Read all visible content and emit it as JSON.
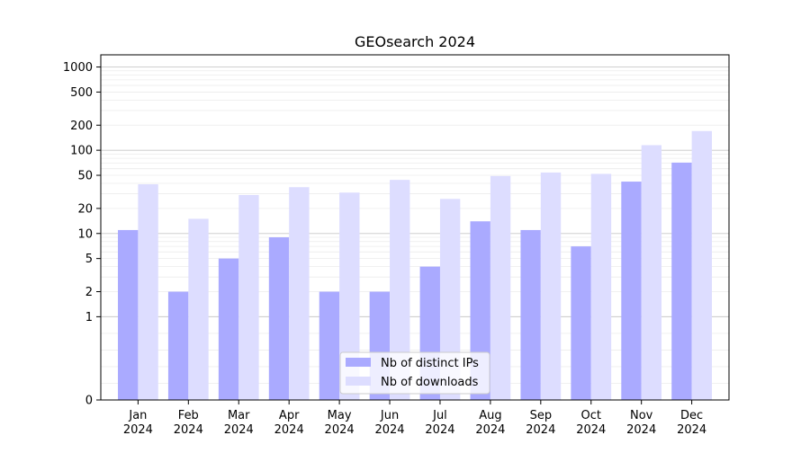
{
  "chart_data": {
    "type": "bar",
    "title": "GEOsearch 2024",
    "xlabel": "",
    "ylabel": "",
    "yscale": "symlog",
    "ylim": [
      0,
      1400
    ],
    "yticks": [
      0,
      1,
      2,
      5,
      10,
      20,
      50,
      100,
      200,
      500,
      1000
    ],
    "ytick_labels": [
      "0",
      "1",
      "2",
      "5",
      "10",
      "20",
      "50",
      "100",
      "200",
      "500",
      "1000"
    ],
    "grid": true,
    "legend_position": "bottom-center",
    "categories": [
      {
        "month": "Jan",
        "year": "2024"
      },
      {
        "month": "Feb",
        "year": "2024"
      },
      {
        "month": "Mar",
        "year": "2024"
      },
      {
        "month": "Apr",
        "year": "2024"
      },
      {
        "month": "May",
        "year": "2024"
      },
      {
        "month": "Jun",
        "year": "2024"
      },
      {
        "month": "Jul",
        "year": "2024"
      },
      {
        "month": "Aug",
        "year": "2024"
      },
      {
        "month": "Sep",
        "year": "2024"
      },
      {
        "month": "Oct",
        "year": "2024"
      },
      {
        "month": "Nov",
        "year": "2024"
      },
      {
        "month": "Dec",
        "year": "2024"
      }
    ],
    "series": [
      {
        "name": "Nb of distinct IPs",
        "color": "#aaaaff",
        "values": [
          11,
          2,
          5,
          9,
          2,
          2,
          4,
          14,
          11,
          7,
          42,
          71
        ]
      },
      {
        "name": "Nb of downloads",
        "color": "#ddddff",
        "values": [
          39,
          15,
          29,
          36,
          31,
          44,
          26,
          49,
          54,
          52,
          115,
          170
        ]
      }
    ]
  }
}
